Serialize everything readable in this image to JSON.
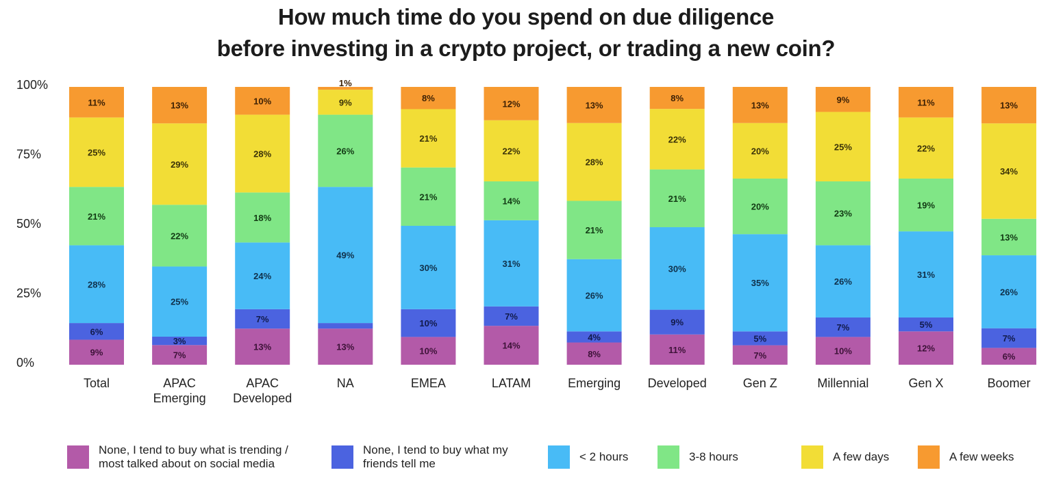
{
  "chart_data": {
    "type": "bar",
    "stacked": true,
    "title": "How much time do you spend on due diligence before investing in a crypto project, or trading a new coin?",
    "title_lines": [
      "How much time do you spend on due diligence",
      "before investing in a crypto project, or trading a new coin?"
    ],
    "categories": [
      "Total",
      "APAC\nEmerging",
      "APAC\nDeveloped",
      "NA",
      "EMEA",
      "LATAM",
      "Emerging",
      "Developed",
      "Gen Z",
      "Millennial",
      "Gen X",
      "Boomer"
    ],
    "yticks": [
      "0%",
      "25%",
      "50%",
      "75%",
      "100%"
    ],
    "ylim": [
      0,
      100
    ],
    "grid": false,
    "legend_position": "bottom",
    "series": [
      {
        "name": "None, I tend to buy what is trending / most talked about on social media",
        "color": "#b35aa8",
        "label_color": "#3d1238",
        "values": [
          9,
          7,
          13,
          13,
          10,
          14,
          8,
          11,
          7,
          10,
          12,
          6
        ]
      },
      {
        "name": "None, I tend to buy what my friends tell me",
        "color": "#4b63e0",
        "label_color": "#111a4a",
        "values": [
          6,
          3,
          7,
          2,
          10,
          7,
          4,
          9,
          5,
          7,
          5,
          7
        ]
      },
      {
        "name": "< 2 hours",
        "color": "#48bbf6",
        "label_color": "#10304a",
        "values": [
          28,
          25,
          24,
          49,
          30,
          31,
          26,
          30,
          35,
          26,
          31,
          26
        ]
      },
      {
        "name": "3-8 hours",
        "color": "#80e686",
        "label_color": "#123a14",
        "values": [
          21,
          22,
          18,
          26,
          21,
          14,
          21,
          21,
          20,
          23,
          19,
          13
        ]
      },
      {
        "name": "A few days",
        "color": "#f2dd36",
        "label_color": "#3a3208",
        "values": [
          25,
          29,
          28,
          9,
          21,
          22,
          28,
          22,
          20,
          25,
          22,
          34
        ]
      },
      {
        "name": "A few weeks",
        "color": "#f79a30",
        "label_color": "#3d2105",
        "values": [
          11,
          13,
          10,
          1,
          8,
          12,
          13,
          8,
          13,
          9,
          11,
          13
        ]
      }
    ]
  }
}
